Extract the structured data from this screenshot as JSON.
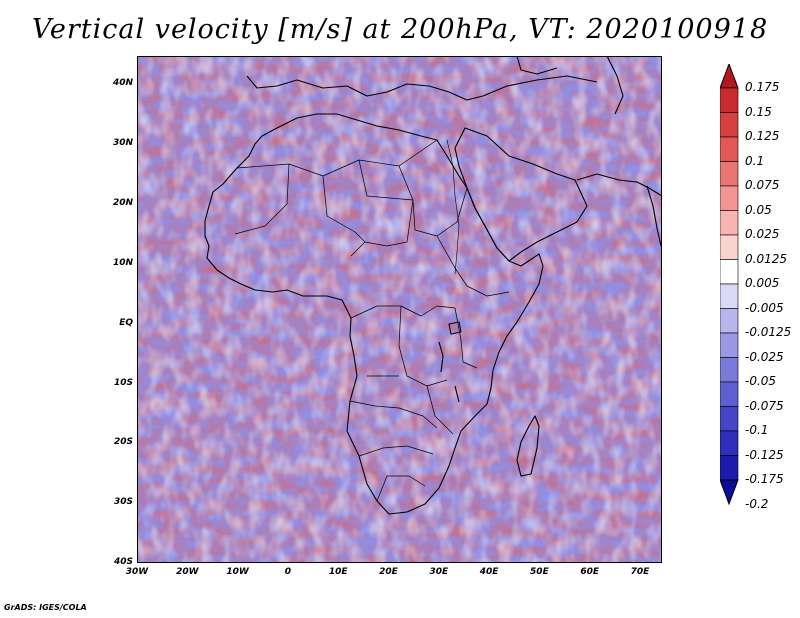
{
  "title": "Vertical velocity [m/s] at 200hPa, VT: 2020100918",
  "credit": "GrADS: IGES/COLA",
  "map": {
    "lat_labels": [
      "40N",
      "30N",
      "20N",
      "10N",
      "EQ",
      "10S",
      "20S",
      "30S",
      "40S"
    ],
    "lon_labels": [
      "30W",
      "20W",
      "10W",
      "0",
      "10E",
      "20E",
      "30E",
      "40E",
      "50E",
      "60E",
      "70E"
    ],
    "lon_range": [
      -30,
      75
    ],
    "lat_range": [
      -40,
      45
    ],
    "field": "vertical velocity at 200hPa"
  },
  "colorbar": {
    "labels": [
      "0.175",
      "0.15",
      "0.125",
      "0.1",
      "0.075",
      "0.05",
      "0.025",
      "0.0125",
      "0.005",
      "-0.005",
      "-0.0125",
      "-0.025",
      "-0.05",
      "-0.075",
      "-0.1",
      "-0.125",
      "-0.175",
      "-0.2"
    ],
    "colors": [
      "#b2191e",
      "#c92a2d",
      "#d6413f",
      "#e15a58",
      "#ea7673",
      "#f19693",
      "#f6b5b2",
      "#fad3d1",
      "#ffffff",
      "#d9d9f5",
      "#b6b6ec",
      "#9898e4",
      "#7a7adb",
      "#5f5fd1",
      "#4545c6",
      "#2f2fb9",
      "#1c1caa",
      "#0c0c9a"
    ]
  }
}
